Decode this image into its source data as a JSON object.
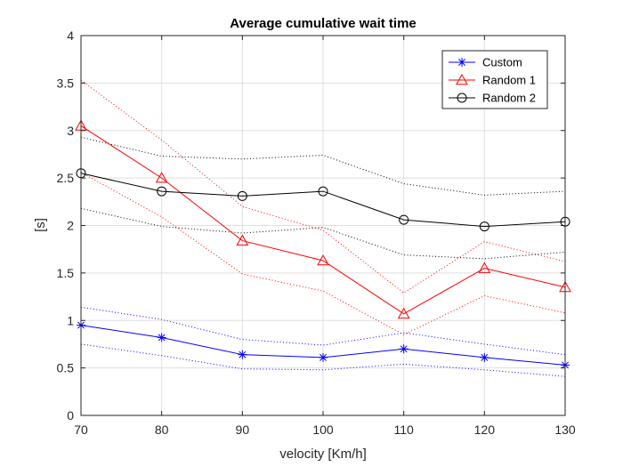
{
  "chart_data": {
    "type": "line",
    "title": "Average cumulative wait time",
    "xlabel": "velocity [Km/h]",
    "ylabel": "[s]",
    "x": [
      70,
      80,
      90,
      100,
      110,
      120,
      130
    ],
    "xlim": [
      70,
      130
    ],
    "ylim": [
      0,
      4
    ],
    "xticks": [
      "70",
      "80",
      "90",
      "100",
      "110",
      "120",
      "130"
    ],
    "yticks": [
      "0",
      "0.5",
      "1",
      "1.5",
      "2",
      "2.5",
      "3",
      "3.5",
      "4"
    ],
    "grid": true,
    "legend_position": "top-right",
    "series": [
      {
        "name": "Custom",
        "color": "#0000ff",
        "marker": "asterisk",
        "values": [
          0.95,
          0.82,
          0.64,
          0.61,
          0.7,
          0.61,
          0.53
        ],
        "upper": [
          1.14,
          1.01,
          0.8,
          0.74,
          0.87,
          0.75,
          0.64
        ],
        "lower": [
          0.75,
          0.63,
          0.49,
          0.48,
          0.54,
          0.48,
          0.41
        ]
      },
      {
        "name": "Random 1",
        "color": "#ff0000",
        "marker": "triangle",
        "values": [
          3.05,
          2.5,
          1.84,
          1.63,
          1.07,
          1.55,
          1.35
        ],
        "upper": [
          3.53,
          2.9,
          2.2,
          1.95,
          1.29,
          1.83,
          1.62
        ],
        "lower": [
          2.56,
          2.09,
          1.49,
          1.31,
          0.85,
          1.26,
          1.08
        ]
      },
      {
        "name": "Random 2",
        "color": "#000000",
        "marker": "circle",
        "values": [
          2.55,
          2.36,
          2.31,
          2.36,
          2.06,
          1.99,
          2.04
        ],
        "upper": [
          2.93,
          2.73,
          2.7,
          2.74,
          2.44,
          2.32,
          2.36
        ],
        "lower": [
          2.18,
          1.99,
          1.92,
          1.98,
          1.69,
          1.65,
          1.72
        ]
      }
    ]
  }
}
